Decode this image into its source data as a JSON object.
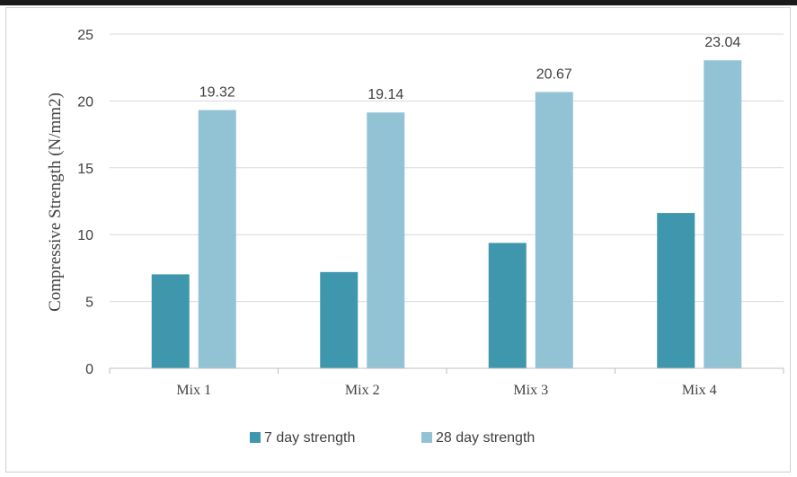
{
  "chart_data": {
    "type": "bar",
    "title": "",
    "xlabel": "",
    "ylabel": "Compressive Strength (N/mm2)",
    "ylim": [
      0,
      25
    ],
    "yticks": [
      0,
      5,
      10,
      15,
      20,
      25
    ],
    "grid": true,
    "legend_position": "bottom",
    "categories": [
      "Mix 1",
      "Mix 2",
      "Mix 3",
      "Mix 4"
    ],
    "series": [
      {
        "name": "7 day strength",
        "values": [
          7.03,
          7.2,
          9.38,
          11.62
        ],
        "color": "#3f97ad",
        "show_labels": false
      },
      {
        "name": "28 day strength",
        "values": [
          19.32,
          19.14,
          20.67,
          23.04
        ],
        "color": "#91c3d5",
        "show_labels": true,
        "labels": [
          "19.32",
          "19.14",
          "20.67",
          "23.04"
        ]
      }
    ]
  }
}
